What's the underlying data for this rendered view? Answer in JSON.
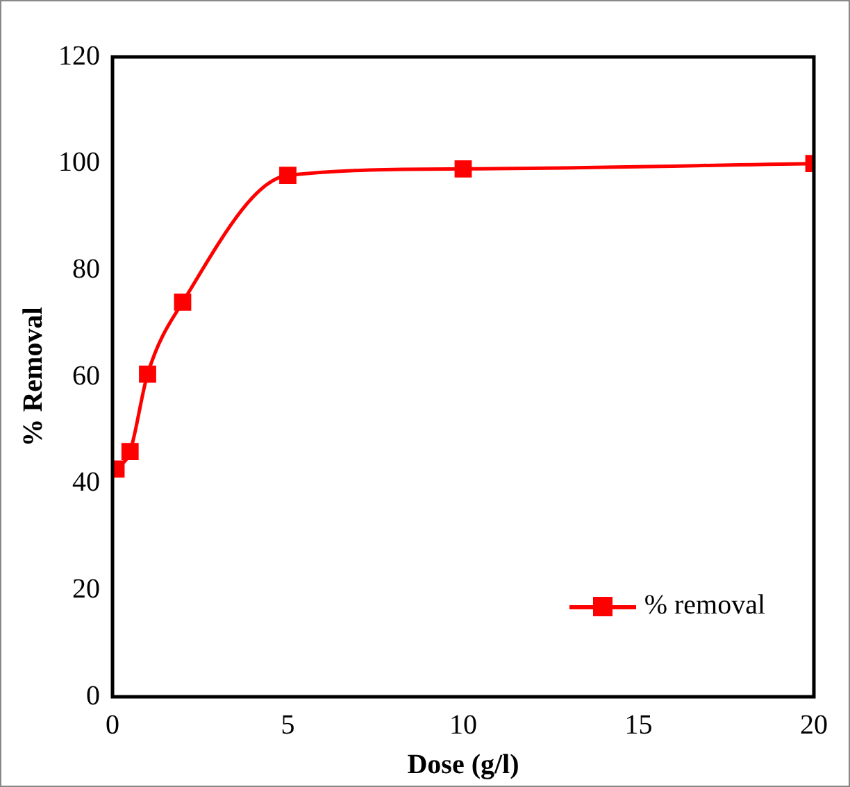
{
  "chart_data": {
    "type": "line",
    "xlabel": "Dose (g/l)",
    "ylabel": "% Removal",
    "x": [
      0.1,
      0.5,
      1,
      2,
      5,
      10,
      20
    ],
    "series": [
      {
        "name": "% removal",
        "color": "#ff0000",
        "values": [
          42.7,
          46,
          60.5,
          74,
          97.8,
          99,
          100
        ]
      }
    ],
    "xlim": [
      0,
      20
    ],
    "xticks": [
      0,
      5,
      10,
      15,
      20
    ],
    "ylim": [
      0,
      120
    ],
    "yticks": [
      0,
      20,
      40,
      60,
      80,
      100,
      120
    ],
    "grid": false,
    "legend": "bottom right",
    "marker": "square",
    "line_style": "solid"
  }
}
